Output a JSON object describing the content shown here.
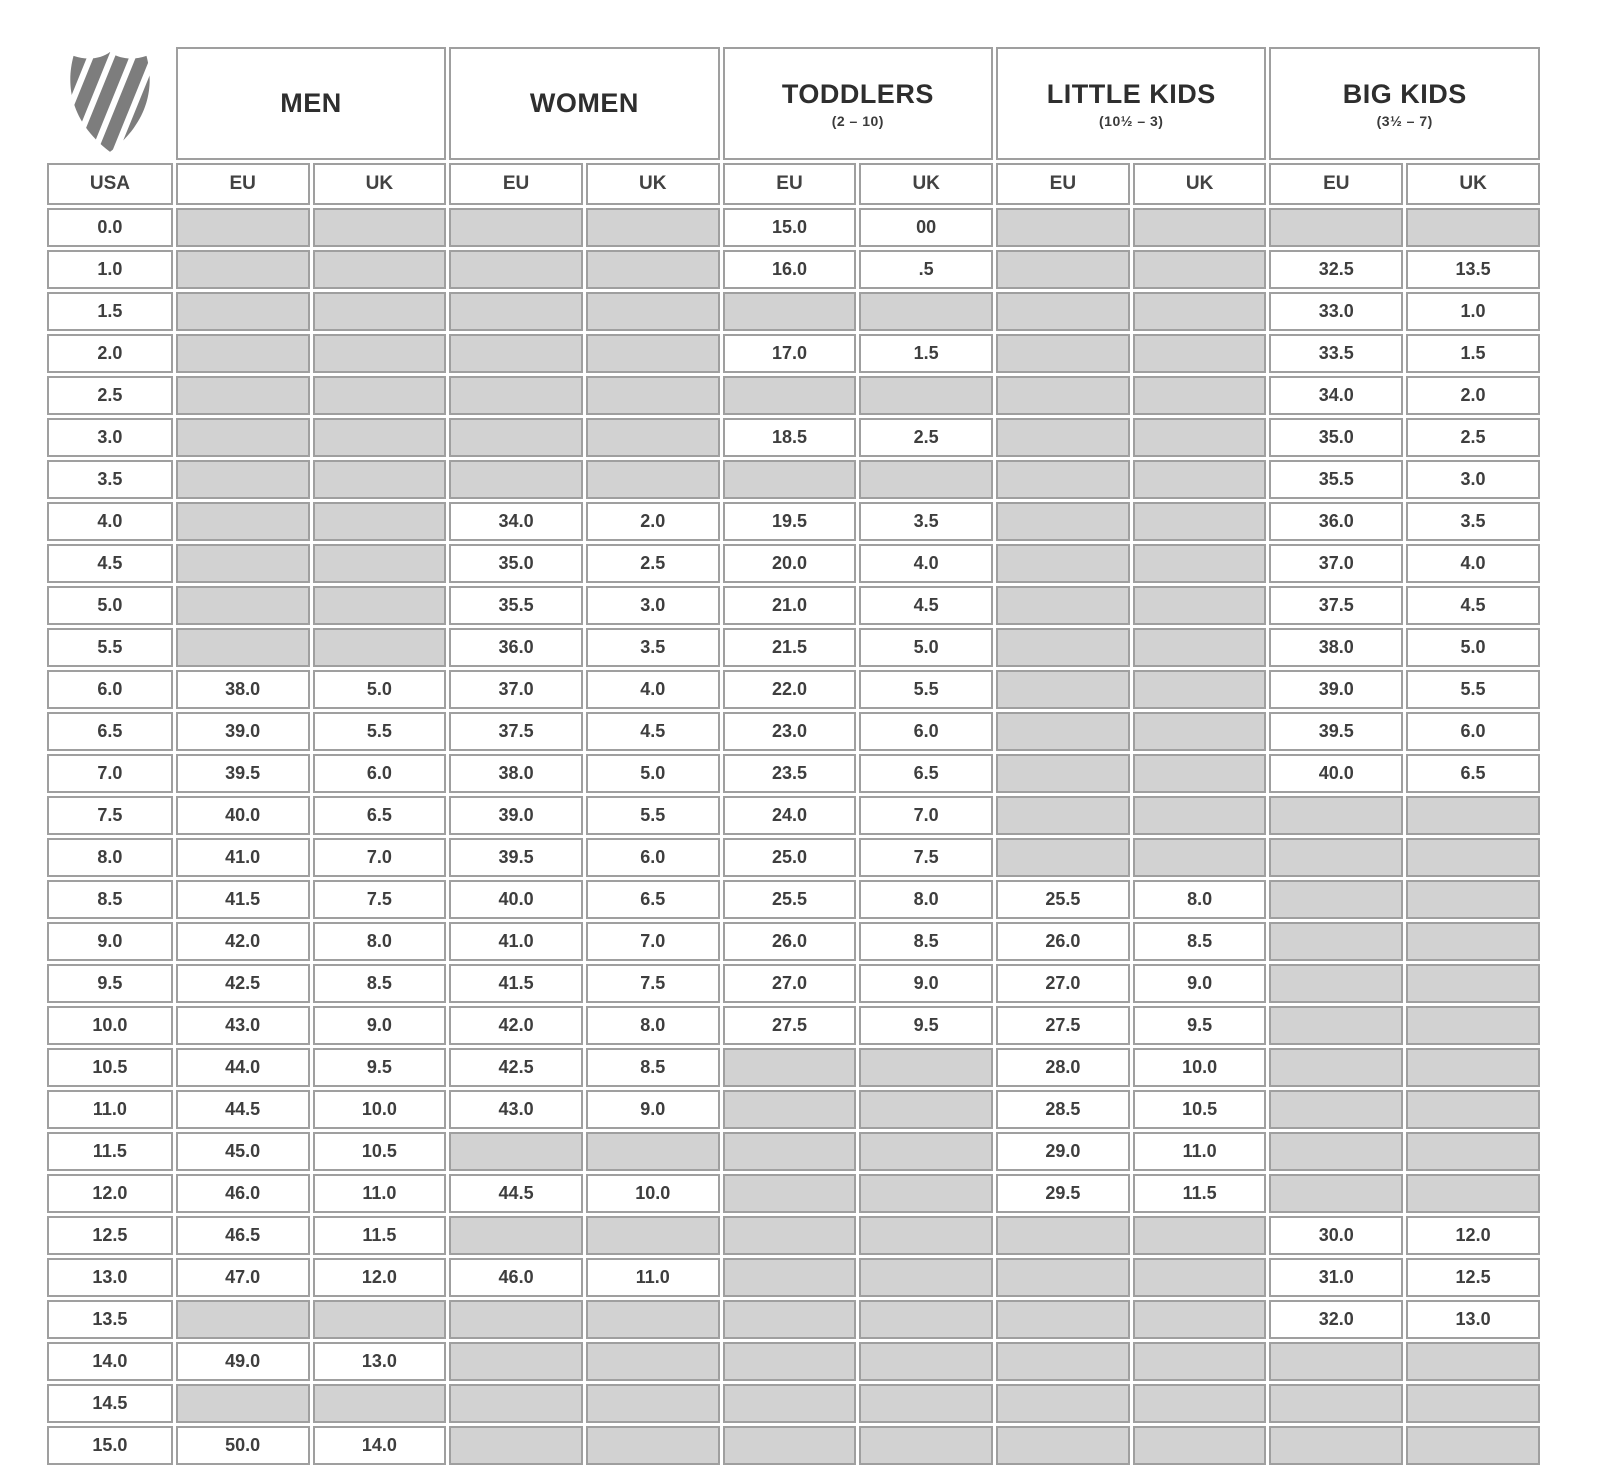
{
  "brand": {
    "logo_icon": "k-swiss-shield-logo",
    "logo_color": "#7d7d7d"
  },
  "colors": {
    "empty_cell": "#d2d2d2",
    "grid_line": "#9f9f9f",
    "text": "#3e3e3e"
  },
  "chart_data": {
    "type": "table",
    "column_groups": [
      {
        "label": "MEN",
        "sub": ""
      },
      {
        "label": "WOMEN",
        "sub": ""
      },
      {
        "label": "TODDLERS",
        "sub": "(2 – 10)"
      },
      {
        "label": "LITTLE KIDS",
        "sub": "(10½ – 3)"
      },
      {
        "label": "BIG KIDS",
        "sub": "(3½ – 7)"
      }
    ],
    "columns": [
      "USA",
      "EU",
      "UK",
      "EU",
      "UK",
      "EU",
      "UK",
      "EU",
      "UK",
      "EU",
      "UK"
    ],
    "rows": [
      [
        "0.0",
        null,
        null,
        null,
        null,
        "15.0",
        "00",
        null,
        null,
        null,
        null
      ],
      [
        "1.0",
        null,
        null,
        null,
        null,
        "16.0",
        ".5",
        null,
        null,
        "32.5",
        "13.5"
      ],
      [
        "1.5",
        null,
        null,
        null,
        null,
        null,
        null,
        null,
        null,
        "33.0",
        "1.0"
      ],
      [
        "2.0",
        null,
        null,
        null,
        null,
        "17.0",
        "1.5",
        null,
        null,
        "33.5",
        "1.5"
      ],
      [
        "2.5",
        null,
        null,
        null,
        null,
        null,
        null,
        null,
        null,
        "34.0",
        "2.0"
      ],
      [
        "3.0",
        null,
        null,
        null,
        null,
        "18.5",
        "2.5",
        null,
        null,
        "35.0",
        "2.5"
      ],
      [
        "3.5",
        null,
        null,
        null,
        null,
        null,
        null,
        null,
        null,
        "35.5",
        "3.0"
      ],
      [
        "4.0",
        null,
        null,
        "34.0",
        "2.0",
        "19.5",
        "3.5",
        null,
        null,
        "36.0",
        "3.5"
      ],
      [
        "4.5",
        null,
        null,
        "35.0",
        "2.5",
        "20.0",
        "4.0",
        null,
        null,
        "37.0",
        "4.0"
      ],
      [
        "5.0",
        null,
        null,
        "35.5",
        "3.0",
        "21.0",
        "4.5",
        null,
        null,
        "37.5",
        "4.5"
      ],
      [
        "5.5",
        null,
        null,
        "36.0",
        "3.5",
        "21.5",
        "5.0",
        null,
        null,
        "38.0",
        "5.0"
      ],
      [
        "6.0",
        "38.0",
        "5.0",
        "37.0",
        "4.0",
        "22.0",
        "5.5",
        null,
        null,
        "39.0",
        "5.5"
      ],
      [
        "6.5",
        "39.0",
        "5.5",
        "37.5",
        "4.5",
        "23.0",
        "6.0",
        null,
        null,
        "39.5",
        "6.0"
      ],
      [
        "7.0",
        "39.5",
        "6.0",
        "38.0",
        "5.0",
        "23.5",
        "6.5",
        null,
        null,
        "40.0",
        "6.5"
      ],
      [
        "7.5",
        "40.0",
        "6.5",
        "39.0",
        "5.5",
        "24.0",
        "7.0",
        null,
        null,
        null,
        null
      ],
      [
        "8.0",
        "41.0",
        "7.0",
        "39.5",
        "6.0",
        "25.0",
        "7.5",
        null,
        null,
        null,
        null
      ],
      [
        "8.5",
        "41.5",
        "7.5",
        "40.0",
        "6.5",
        "25.5",
        "8.0",
        "25.5",
        "8.0",
        null,
        null
      ],
      [
        "9.0",
        "42.0",
        "8.0",
        "41.0",
        "7.0",
        "26.0",
        "8.5",
        "26.0",
        "8.5",
        null,
        null
      ],
      [
        "9.5",
        "42.5",
        "8.5",
        "41.5",
        "7.5",
        "27.0",
        "9.0",
        "27.0",
        "9.0",
        null,
        null
      ],
      [
        "10.0",
        "43.0",
        "9.0",
        "42.0",
        "8.0",
        "27.5",
        "9.5",
        "27.5",
        "9.5",
        null,
        null
      ],
      [
        "10.5",
        "44.0",
        "9.5",
        "42.5",
        "8.5",
        null,
        null,
        "28.0",
        "10.0",
        null,
        null
      ],
      [
        "11.0",
        "44.5",
        "10.0",
        "43.0",
        "9.0",
        null,
        null,
        "28.5",
        "10.5",
        null,
        null
      ],
      [
        "11.5",
        "45.0",
        "10.5",
        null,
        null,
        null,
        null,
        "29.0",
        "11.0",
        null,
        null
      ],
      [
        "12.0",
        "46.0",
        "11.0",
        "44.5",
        "10.0",
        null,
        null,
        "29.5",
        "11.5",
        null,
        null
      ],
      [
        "12.5",
        "46.5",
        "11.5",
        null,
        null,
        null,
        null,
        null,
        null,
        "30.0",
        "12.0"
      ],
      [
        "13.0",
        "47.0",
        "12.0",
        "46.0",
        "11.0",
        null,
        null,
        null,
        null,
        "31.0",
        "12.5"
      ],
      [
        "13.5",
        null,
        null,
        null,
        null,
        null,
        null,
        null,
        null,
        "32.0",
        "13.0"
      ],
      [
        "14.0",
        "49.0",
        "13.0",
        null,
        null,
        null,
        null,
        null,
        null,
        null,
        null
      ],
      [
        "14.5",
        null,
        null,
        null,
        null,
        null,
        null,
        null,
        null,
        null,
        null
      ],
      [
        "15.0",
        "50.0",
        "14.0",
        null,
        null,
        null,
        null,
        null,
        null,
        null,
        null
      ]
    ]
  }
}
